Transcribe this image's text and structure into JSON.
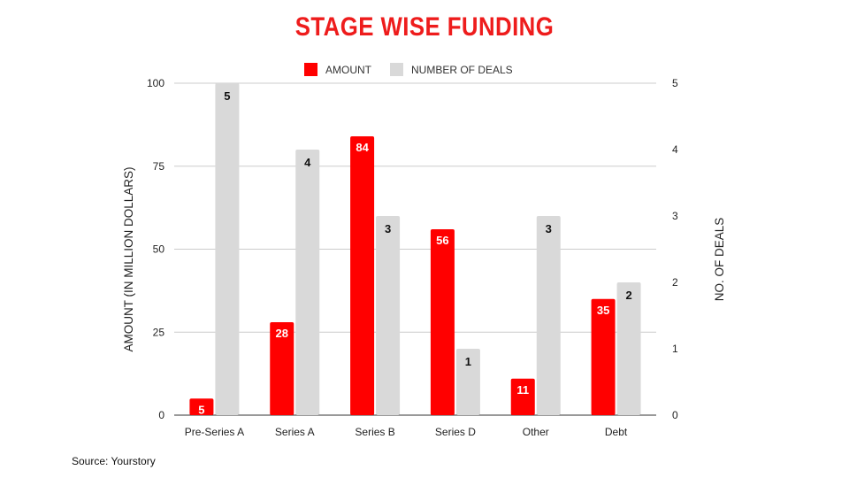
{
  "title": "STAGE WISE FUNDING",
  "source": "Source: Yourstory",
  "colors": {
    "amount": "#ff0000",
    "deals": "#d9d9d9",
    "title": "#ee1c1c",
    "grid": "#cccccc"
  },
  "chart_data": {
    "type": "bar",
    "categories": [
      "Pre-Series A",
      "Series A",
      "Series B",
      "Series D",
      "Other",
      "Debt"
    ],
    "series": [
      {
        "name": "AMOUNT",
        "axis": "left",
        "values": [
          5,
          28,
          84,
          56,
          11,
          35
        ]
      },
      {
        "name": "NUMBER OF DEALS",
        "axis": "right",
        "values": [
          5,
          4,
          3,
          1,
          3,
          2
        ]
      }
    ],
    "ylabel": "AMOUNT (IN MILLION DOLLARS)",
    "y2label": "NO. OF DEALS",
    "ylim": [
      0,
      100
    ],
    "y2lim": [
      0,
      5
    ],
    "yticks": [
      "0",
      "25",
      "50",
      "75",
      "100"
    ],
    "y2ticks": [
      "0",
      "1",
      "2",
      "3",
      "4",
      "5"
    ],
    "legend": "top",
    "grid": true
  }
}
